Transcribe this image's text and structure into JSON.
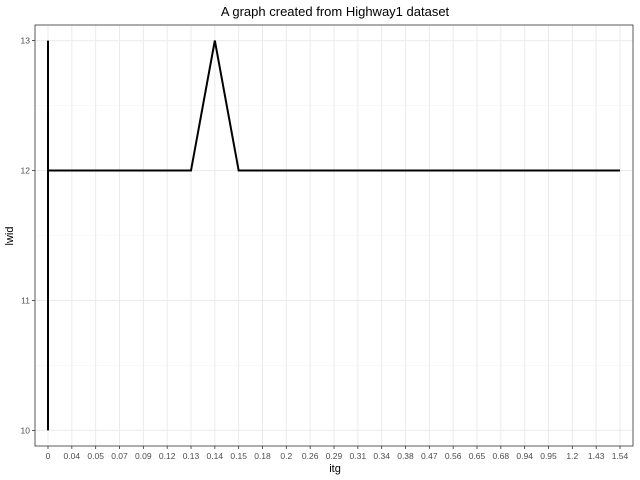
{
  "chart_data": {
    "type": "line",
    "title": "A graph created from Highway1 dataset",
    "xlabel": "itg",
    "ylabel": "lwid",
    "categories": [
      "0",
      "0.04",
      "0.05",
      "0.07",
      "0.09",
      "0.12",
      "0.13",
      "0.14",
      "0.15",
      "0.18",
      "0.2",
      "0.26",
      "0.29",
      "0.31",
      "0.34",
      "0.38",
      "0.47",
      "0.56",
      "0.65",
      "0.68",
      "0.94",
      "0.95",
      "1.2",
      "1.43",
      "1.54"
    ],
    "points": [
      {
        "x": "0",
        "y": 10
      },
      {
        "x": "0",
        "y": 13
      },
      {
        "x": "0",
        "y": 12
      },
      {
        "x": "0.04",
        "y": 12
      },
      {
        "x": "0.05",
        "y": 12
      },
      {
        "x": "0.07",
        "y": 12
      },
      {
        "x": "0.09",
        "y": 12
      },
      {
        "x": "0.12",
        "y": 12
      },
      {
        "x": "0.13",
        "y": 12
      },
      {
        "x": "0.14",
        "y": 13
      },
      {
        "x": "0.15",
        "y": 12
      },
      {
        "x": "0.18",
        "y": 12
      },
      {
        "x": "0.2",
        "y": 12
      },
      {
        "x": "0.26",
        "y": 12
      },
      {
        "x": "0.29",
        "y": 12
      },
      {
        "x": "0.31",
        "y": 12
      },
      {
        "x": "0.34",
        "y": 12
      },
      {
        "x": "0.38",
        "y": 12
      },
      {
        "x": "0.47",
        "y": 12
      },
      {
        "x": "0.56",
        "y": 12
      },
      {
        "x": "0.65",
        "y": 12
      },
      {
        "x": "0.68",
        "y": 12
      },
      {
        "x": "0.94",
        "y": 12
      },
      {
        "x": "0.95",
        "y": 12
      },
      {
        "x": "1.2",
        "y": 12
      },
      {
        "x": "1.43",
        "y": 12
      },
      {
        "x": "1.54",
        "y": 12
      }
    ],
    "yticks": [
      10,
      11,
      12,
      13
    ],
    "ylim": [
      9.88,
      13.12
    ],
    "grid": true,
    "legend": "none",
    "colors": {
      "line": "#000000",
      "grid_major": "#ebebeb",
      "grid_minor": "#f5f5f5",
      "panel_border": "#333333"
    }
  }
}
